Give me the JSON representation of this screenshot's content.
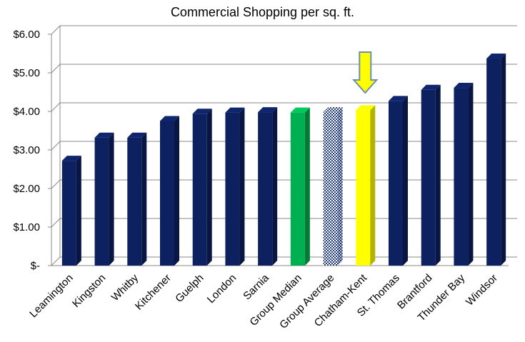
{
  "chart_data": {
    "type": "bar",
    "title": "Commercial Shopping per sq. ft.",
    "xlabel": "",
    "ylabel": "",
    "ylim": [
      0,
      6
    ],
    "yticks": [
      {
        "value": 0,
        "label": "$-"
      },
      {
        "value": 1,
        "label": "$1.00"
      },
      {
        "value": 2,
        "label": "$2.00"
      },
      {
        "value": 3,
        "label": "$3.00"
      },
      {
        "value": 4,
        "label": "$4.00"
      },
      {
        "value": 5,
        "label": "$5.00"
      },
      {
        "value": 6,
        "label": "$6.00"
      }
    ],
    "grid": true,
    "legend": "none",
    "categories": [
      "Leamington",
      "Kingston",
      "Whitby",
      "Kitchener",
      "Guelph",
      "London",
      "Sarnia",
      "Group Median",
      "Group Average",
      "Chatham-Kent",
      "St. Thomas",
      "Brantford",
      "Thunder Bay",
      "Windsor"
    ],
    "values": [
      2.72,
      3.32,
      3.32,
      3.75,
      3.94,
      3.97,
      3.98,
      3.97,
      3.98,
      4.03,
      4.27,
      4.56,
      4.61,
      5.37
    ],
    "bar_colors": [
      "#0d2060",
      "#0d2060",
      "#0d2060",
      "#0d2060",
      "#0d2060",
      "#0d2060",
      "#0d2060",
      "#00b050",
      "pattern",
      "#ffff00",
      "#0d2060",
      "#0d2060",
      "#0d2060",
      "#0d2060"
    ],
    "highlight_arrow_category": "Chatham-Kent",
    "arrow_color": "#ffff00"
  }
}
